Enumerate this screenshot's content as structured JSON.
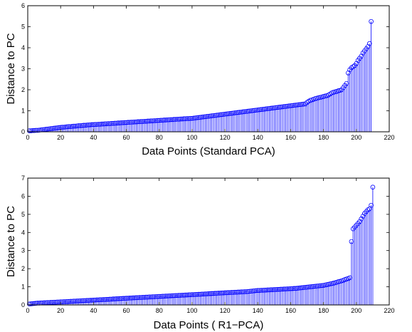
{
  "chart_data": [
    {
      "type": "stem",
      "xlabel": "Data Points (Standard PCA)",
      "ylabel": "Distance to PC",
      "xlim": [
        0,
        220
      ],
      "ylim": [
        0,
        6
      ],
      "xticks": [
        0,
        20,
        40,
        60,
        80,
        100,
        120,
        140,
        160,
        180,
        200,
        220
      ],
      "yticks": [
        0,
        1,
        2,
        3,
        4,
        5,
        6
      ],
      "series_color": "#0000ff",
      "marker": "circle",
      "grid": false,
      "values": [
        0.05,
        0.05,
        0.06,
        0.06,
        0.07,
        0.07,
        0.08,
        0.09,
        0.1,
        0.11,
        0.12,
        0.13,
        0.14,
        0.15,
        0.16,
        0.17,
        0.18,
        0.19,
        0.2,
        0.21,
        0.22,
        0.22,
        0.23,
        0.24,
        0.25,
        0.25,
        0.26,
        0.27,
        0.27,
        0.28,
        0.29,
        0.29,
        0.3,
        0.31,
        0.31,
        0.32,
        0.33,
        0.33,
        0.34,
        0.34,
        0.35,
        0.35,
        0.36,
        0.36,
        0.37,
        0.37,
        0.38,
        0.38,
        0.39,
        0.39,
        0.4,
        0.4,
        0.41,
        0.41,
        0.42,
        0.42,
        0.43,
        0.43,
        0.44,
        0.44,
        0.45,
        0.45,
        0.46,
        0.46,
        0.47,
        0.47,
        0.48,
        0.48,
        0.49,
        0.49,
        0.5,
        0.5,
        0.51,
        0.51,
        0.52,
        0.52,
        0.53,
        0.53,
        0.54,
        0.54,
        0.55,
        0.55,
        0.56,
        0.56,
        0.57,
        0.57,
        0.58,
        0.58,
        0.59,
        0.59,
        0.6,
        0.6,
        0.61,
        0.61,
        0.62,
        0.62,
        0.63,
        0.63,
        0.64,
        0.64,
        0.65,
        0.66,
        0.67,
        0.68,
        0.69,
        0.7,
        0.71,
        0.72,
        0.73,
        0.74,
        0.75,
        0.76,
        0.77,
        0.78,
        0.79,
        0.8,
        0.81,
        0.82,
        0.83,
        0.84,
        0.85,
        0.86,
        0.87,
        0.88,
        0.89,
        0.9,
        0.91,
        0.92,
        0.93,
        0.94,
        0.95,
        0.96,
        0.97,
        0.98,
        0.99,
        1.0,
        1.01,
        1.02,
        1.03,
        1.04,
        1.05,
        1.06,
        1.07,
        1.08,
        1.09,
        1.1,
        1.11,
        1.12,
        1.13,
        1.14,
        1.15,
        1.16,
        1.17,
        1.18,
        1.19,
        1.2,
        1.21,
        1.22,
        1.23,
        1.24,
        1.25,
        1.26,
        1.27,
        1.28,
        1.29,
        1.3,
        1.31,
        1.32,
        1.33,
        1.4,
        1.45,
        1.5,
        1.52,
        1.55,
        1.58,
        1.6,
        1.62,
        1.64,
        1.66,
        1.68,
        1.7,
        1.72,
        1.75,
        1.8,
        1.85,
        1.88,
        1.9,
        1.92,
        1.95,
        1.97,
        2.0,
        2.1,
        2.2,
        2.3,
        2.8,
        2.95,
        3.05,
        3.1,
        3.15,
        3.25,
        3.4,
        3.5,
        3.6,
        3.75,
        3.85,
        3.95,
        4.05,
        4.2,
        5.25
      ]
    },
    {
      "type": "stem",
      "xlabel": "Data Points ( R1−PCA)",
      "ylabel": "Distance to PC",
      "xlim": [
        0,
        220
      ],
      "ylim": [
        0,
        7
      ],
      "xticks": [
        0,
        20,
        40,
        60,
        80,
        100,
        120,
        140,
        160,
        180,
        200,
        220
      ],
      "yticks": [
        0,
        1,
        2,
        3,
        4,
        5,
        6,
        7
      ],
      "series_color": "#0000ff",
      "marker": "circle",
      "grid": false,
      "values": [
        0.05,
        0.06,
        0.07,
        0.08,
        0.09,
        0.1,
        0.1,
        0.11,
        0.11,
        0.12,
        0.12,
        0.13,
        0.13,
        0.14,
        0.14,
        0.15,
        0.15,
        0.16,
        0.16,
        0.17,
        0.17,
        0.18,
        0.18,
        0.19,
        0.19,
        0.2,
        0.2,
        0.21,
        0.21,
        0.22,
        0.22,
        0.23,
        0.23,
        0.24,
        0.24,
        0.25,
        0.25,
        0.26,
        0.26,
        0.27,
        0.27,
        0.28,
        0.28,
        0.29,
        0.29,
        0.3,
        0.3,
        0.31,
        0.31,
        0.32,
        0.32,
        0.33,
        0.33,
        0.34,
        0.34,
        0.35,
        0.35,
        0.36,
        0.36,
        0.37,
        0.37,
        0.38,
        0.38,
        0.39,
        0.39,
        0.4,
        0.4,
        0.41,
        0.41,
        0.42,
        0.42,
        0.43,
        0.43,
        0.44,
        0.44,
        0.45,
        0.45,
        0.46,
        0.46,
        0.47,
        0.47,
        0.48,
        0.48,
        0.49,
        0.49,
        0.5,
        0.5,
        0.51,
        0.51,
        0.52,
        0.52,
        0.53,
        0.53,
        0.54,
        0.54,
        0.55,
        0.55,
        0.56,
        0.56,
        0.57,
        0.57,
        0.58,
        0.58,
        0.59,
        0.59,
        0.6,
        0.6,
        0.61,
        0.61,
        0.62,
        0.62,
        0.63,
        0.63,
        0.64,
        0.64,
        0.65,
        0.65,
        0.66,
        0.66,
        0.67,
        0.67,
        0.68,
        0.68,
        0.69,
        0.69,
        0.7,
        0.7,
        0.71,
        0.71,
        0.72,
        0.72,
        0.73,
        0.73,
        0.74,
        0.75,
        0.76,
        0.77,
        0.78,
        0.79,
        0.8,
        0.8,
        0.81,
        0.81,
        0.82,
        0.82,
        0.83,
        0.83,
        0.84,
        0.84,
        0.85,
        0.85,
        0.86,
        0.86,
        0.87,
        0.87,
        0.88,
        0.88,
        0.89,
        0.89,
        0.9,
        0.9,
        0.91,
        0.91,
        0.92,
        0.93,
        0.94,
        0.95,
        0.96,
        0.97,
        0.98,
        0.99,
        1.0,
        1.01,
        1.02,
        1.03,
        1.04,
        1.05,
        1.06,
        1.07,
        1.08,
        1.1,
        1.12,
        1.14,
        1.16,
        1.18,
        1.2,
        1.22,
        1.25,
        1.28,
        1.3,
        1.33,
        1.36,
        1.4,
        1.43,
        1.46,
        1.5,
        3.5,
        4.2,
        4.3,
        4.4,
        4.5,
        4.6,
        4.75,
        4.9,
        5.05,
        5.15,
        5.25,
        5.3,
        5.5,
        6.5
      ]
    }
  ]
}
